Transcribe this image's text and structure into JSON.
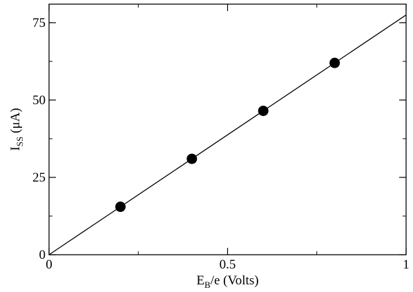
{
  "chart_data": {
    "type": "scatter",
    "title": "",
    "xlabel": {
      "base": "E",
      "sub": "B",
      "rest": "/e (Volts)"
    },
    "ylabel": {
      "base": "I",
      "sub": "SS",
      "rest": " (μA)"
    },
    "xlim": [
      0,
      1
    ],
    "ylim": [
      0,
      81
    ],
    "x_ticks": [
      {
        "value": 0,
        "label": "0"
      },
      {
        "value": 0.5,
        "label": "0.5"
      },
      {
        "value": 1,
        "label": "1"
      }
    ],
    "y_ticks": [
      {
        "value": 0,
        "label": "0"
      },
      {
        "value": 25,
        "label": "25"
      },
      {
        "value": 50,
        "label": "50"
      },
      {
        "value": 75,
        "label": "75"
      }
    ],
    "x_minor_step": 0.25,
    "y_minor_step": 12.5,
    "grid": false,
    "series": [
      {
        "type": "scatter",
        "x": [
          0.2,
          0.4,
          0.6,
          0.8
        ],
        "y": [
          15.5,
          31,
          46.5,
          62
        ],
        "color": "#000000"
      },
      {
        "type": "line",
        "x": [
          0,
          1
        ],
        "y": [
          0,
          77.5
        ],
        "color": "#000000"
      }
    ]
  }
}
